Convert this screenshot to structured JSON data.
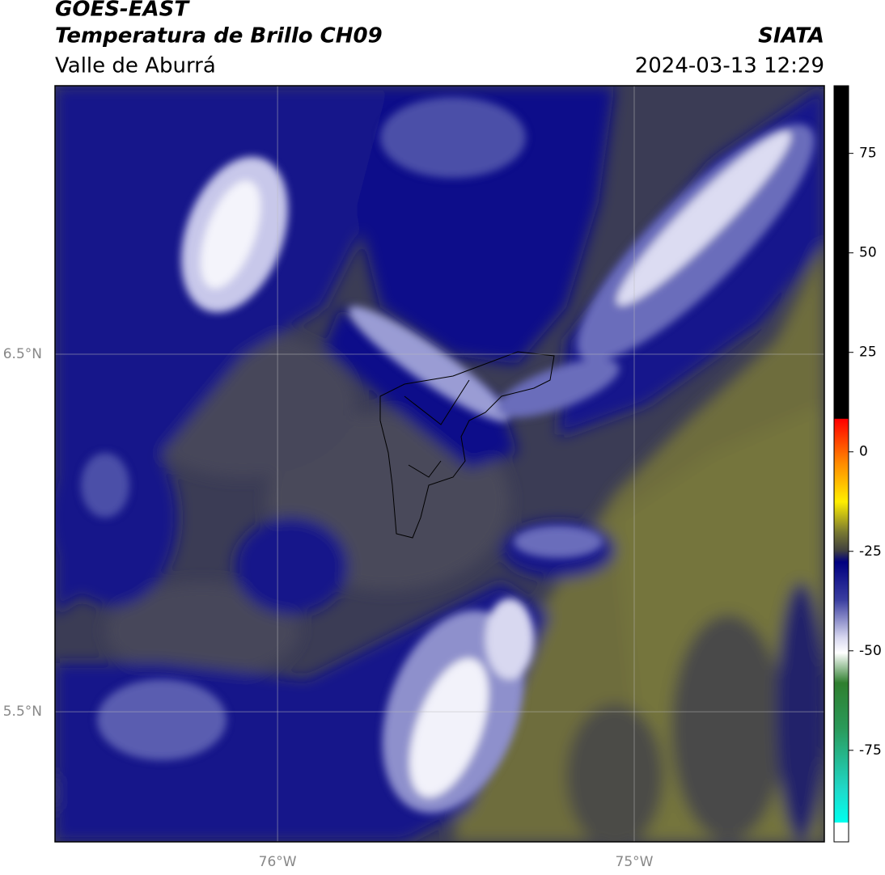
{
  "header": {
    "title": "GOES-EAST",
    "subtitle": "Temperatura de Brillo CH09",
    "region": "Valle de Aburrá",
    "source": "SIATA",
    "timestamp": "2024-03-13 12:29"
  },
  "map": {
    "lon_lim": [
      -76.624,
      -74.467
    ],
    "lat_lim": [
      5.136,
      7.251
    ],
    "lon_ticks": [
      {
        "value": -76,
        "label": "76°W"
      },
      {
        "value": -75,
        "label": "75°W"
      }
    ],
    "lat_ticks": [
      {
        "value": 6.5,
        "label": "6.5°N"
      },
      {
        "value": 5.5,
        "label": "5.5°N"
      }
    ]
  },
  "colorbar": {
    "lim": [
      -98,
      92
    ],
    "ticks": [
      75,
      50,
      25,
      0,
      -25,
      -50,
      -75
    ]
  }
}
